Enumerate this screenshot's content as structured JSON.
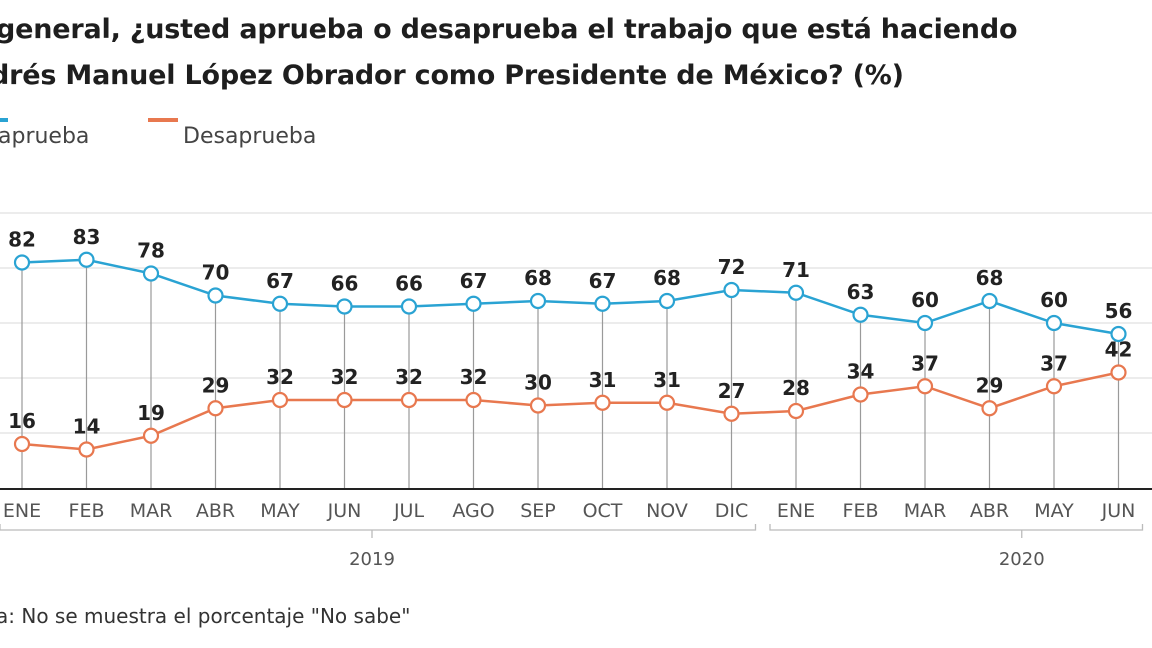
{
  "chart_data": {
    "type": "line",
    "title_lines": [
      "general, ¿usted aprueba o desaprueba el trabajo que está haciendo",
      "drés Manuel López Obrador como Presidente de México?  (%)"
    ],
    "categories": [
      "ENE",
      "FEB",
      "MAR",
      "ABR",
      "MAY",
      "JUN",
      "JUL",
      "AGO",
      "SEP",
      "OCT",
      "NOV",
      "DIC",
      "ENE",
      "FEB",
      "MAR",
      "ABR",
      "MAY",
      "JUN"
    ],
    "year_groups": [
      {
        "label": "2019",
        "from": 0,
        "to": 11
      },
      {
        "label": "2020",
        "from": 12,
        "to": 17
      }
    ],
    "series": [
      {
        "name": "aprueba",
        "color": "#2aa3d3",
        "values": [
          82,
          83,
          78,
          70,
          67,
          66,
          66,
          67,
          68,
          67,
          68,
          72,
          71,
          63,
          60,
          68,
          60,
          56
        ]
      },
      {
        "name": "Desaprueba",
        "color": "#e8784f",
        "values": [
          16,
          14,
          19,
          29,
          32,
          32,
          32,
          32,
          30,
          31,
          31,
          27,
          28,
          34,
          37,
          29,
          37,
          42
        ]
      }
    ],
    "ylim": [
      0,
      100
    ],
    "grid": true,
    "legend_position": "top-left",
    "note": "a: No se muestra el porcentaje \"No sabe\""
  }
}
